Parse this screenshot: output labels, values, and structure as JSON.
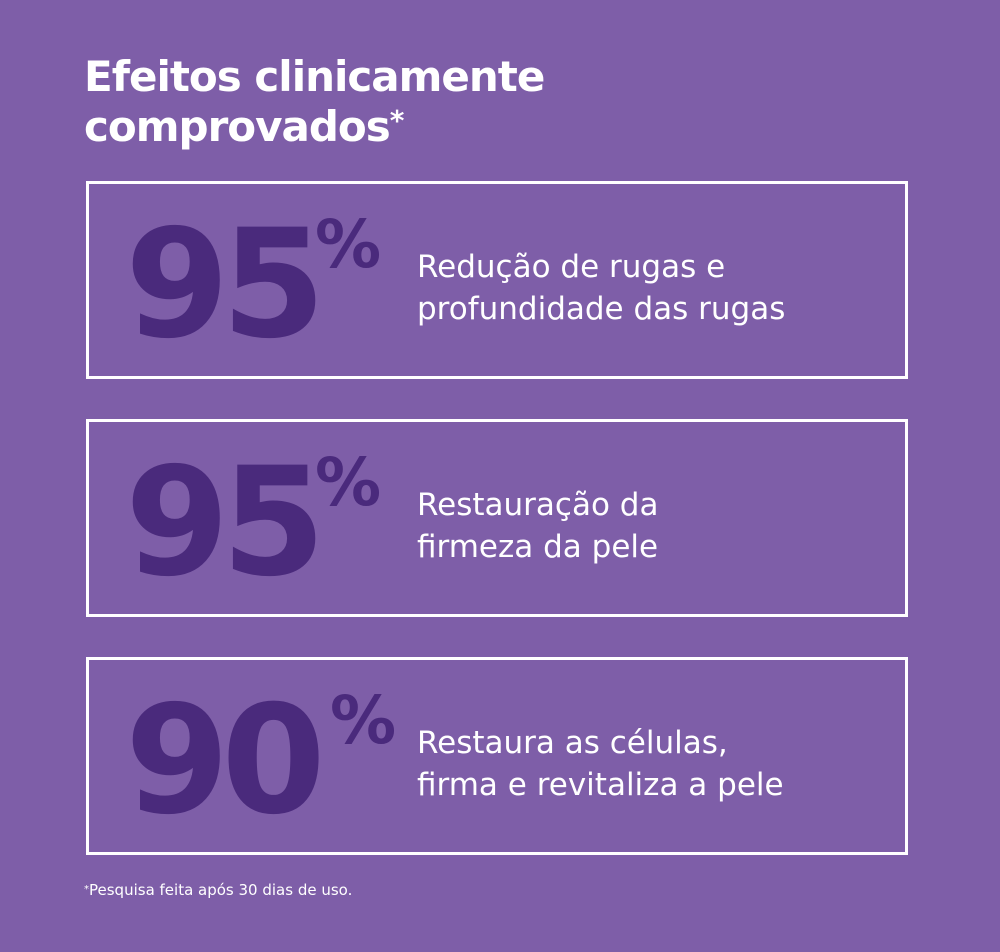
{
  "header": {
    "title_line1": "Efeitos clinicamente",
    "title_line2": "comprovados",
    "title_asterisk": "*"
  },
  "stats": [
    {
      "value": "95",
      "unit": "%",
      "description_line1": "Redução de rugas e",
      "description_line2": "profundidade das rugas"
    },
    {
      "value": "95",
      "unit": "%",
      "description_line1": "Restauração da",
      "description_line2": "firmeza da pele"
    },
    {
      "value": "90",
      "unit": "%",
      "description_line1": "Restaura as células,",
      "description_line2": "firma e revitaliza a pele"
    }
  ],
  "footnote": {
    "asterisk": "*",
    "text": "Pesquisa feita após 30 dias de uso."
  },
  "colors": {
    "background": "#7e5ea8",
    "number": "#4a2a7c",
    "text": "#ffffff",
    "border": "#ffffff"
  }
}
